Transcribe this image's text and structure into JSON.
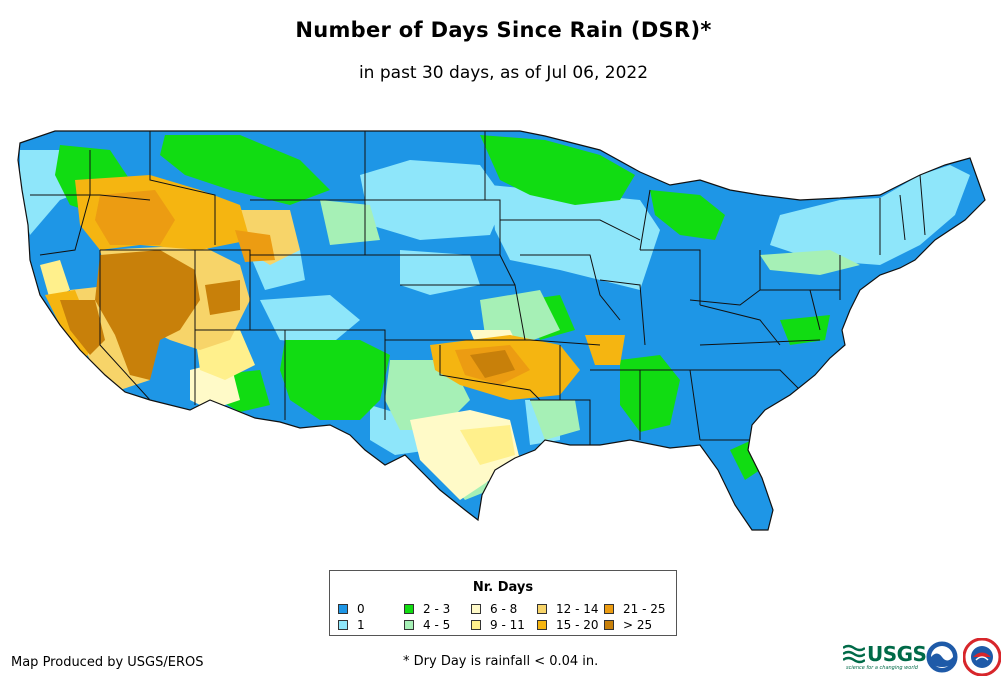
{
  "map": {
    "title": "Number of Days Since Rain (DSR)*",
    "subtitle": "in past 30 days, as of Jul 06, 2022",
    "region": "Contiguous United States"
  },
  "legend": {
    "title": "Nr. Days",
    "items": [
      {
        "label": "0",
        "color": "#1e96e6"
      },
      {
        "label": "1",
        "color": "#8ee6fa"
      },
      {
        "label": "2 - 3",
        "color": "#11dc12"
      },
      {
        "label": "4 - 5",
        "color": "#a6f0b6"
      },
      {
        "label": "6 - 8",
        "color": "#fffac8"
      },
      {
        "label": "9 - 11",
        "color": "#fff08c"
      },
      {
        "label": "12 - 14",
        "color": "#f7d469"
      },
      {
        "label": "15 - 20",
        "color": "#f5b511"
      },
      {
        "label": "21 - 25",
        "color": "#ec9c12"
      },
      {
        "label": "> 25",
        "color": "#c8800a"
      }
    ]
  },
  "footer": {
    "credit": "Map Produced by USGS/EROS",
    "footnote": "* Dry Day is rainfall < 0.04 in.",
    "usgs_logo_text": "USGS",
    "usgs_tagline": "science for a changing world"
  },
  "colors": {
    "border": "#111111",
    "usgs_green": "#006a48",
    "noaa_blue": "#1e5aa8",
    "nws_red": "#d7262b"
  }
}
